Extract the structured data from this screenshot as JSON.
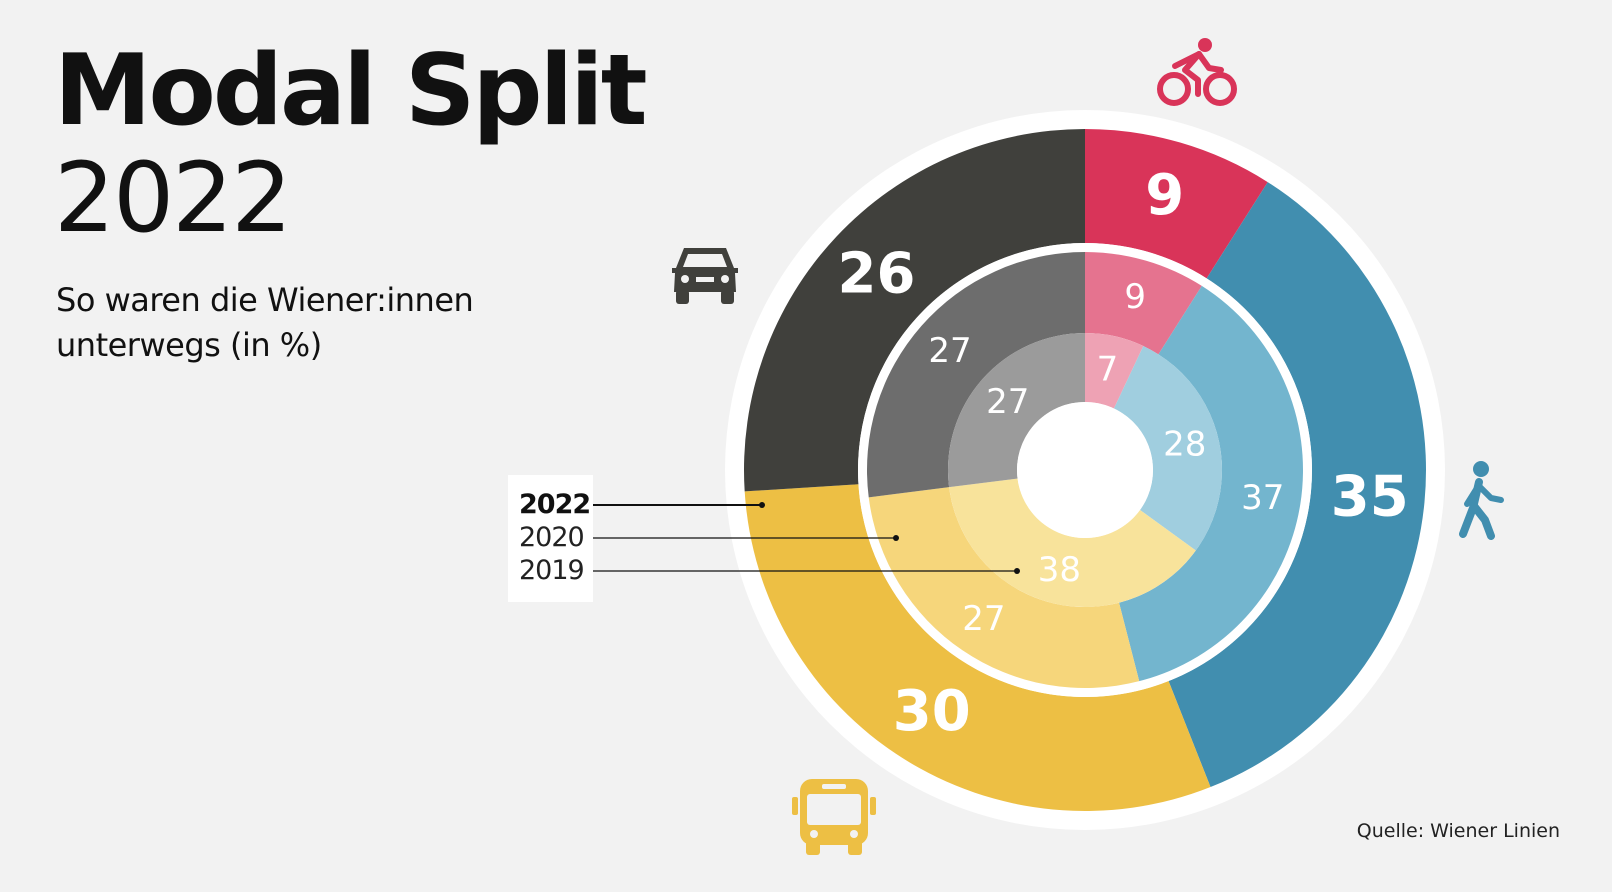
{
  "header": {
    "title_line1": "Modal Split",
    "title_line2": "2022",
    "subtitle": "So waren die Wiener:innen unterwegs (in %)"
  },
  "source": "Quelle: Wiener Linien",
  "chart_data": {
    "type": "pie",
    "variant": "concentric-donut",
    "categories": [
      "Rad",
      "Zu Fuß",
      "Öffis",
      "Auto"
    ],
    "icons": [
      "bicycle-icon",
      "pedestrian-icon",
      "bus-icon",
      "car-icon"
    ],
    "colors": {
      "2022": [
        "#d93459",
        "#418eaf",
        "#edbf44",
        "#40403c"
      ],
      "2020": [
        "#e5738f",
        "#73b5ce",
        "#f6d67b",
        "#6d6d6d"
      ],
      "2019": [
        "#eea2b4",
        "#a0cedf",
        "#f8e39b",
        "#9b9b9b"
      ]
    },
    "series": [
      {
        "name": "2022",
        "values": [
          9,
          35,
          30,
          26
        ]
      },
      {
        "name": "2020",
        "values": [
          9,
          37,
          27,
          27
        ]
      },
      {
        "name": "2019",
        "values": [
          7,
          28,
          38,
          27
        ]
      }
    ],
    "legend": {
      "placement": "left",
      "entries": [
        "2022",
        "2020",
        "2019"
      ]
    }
  }
}
